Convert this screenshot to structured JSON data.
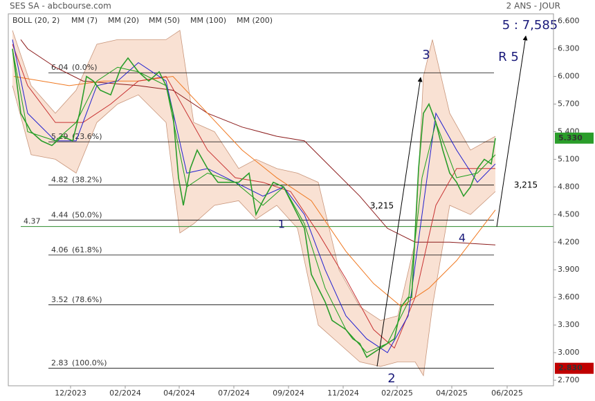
{
  "header": {
    "title": "SES SA - abcbourse.com",
    "period": "2 ANS - JOUR"
  },
  "chart_data": {
    "type": "line",
    "xlim": [
      0,
      394
    ],
    "xticks": [
      {
        "value": 45,
        "label": "12/2023"
      },
      {
        "value": 84.5,
        "label": "02/2024"
      },
      {
        "value": 123.5,
        "label": "04/2024"
      },
      {
        "value": 163,
        "label": "07/2024"
      },
      {
        "value": 202.5,
        "label": "09/2024"
      },
      {
        "value": 242,
        "label": "11/2024"
      },
      {
        "value": 281,
        "label": "02/2025"
      },
      {
        "value": 320.5,
        "label": "04/2025"
      },
      {
        "value": 360.5,
        "label": "06/2025"
      }
    ],
    "ylim": [
      2.64,
      6.68
    ],
    "yticks": [
      {
        "value": 2.7,
        "label": "2.700"
      },
      {
        "value": 3.0,
        "label": "3.000"
      },
      {
        "value": 3.3,
        "label": "3.300"
      },
      {
        "value": 3.6,
        "label": "3.600"
      },
      {
        "value": 3.9,
        "label": "3.900"
      },
      {
        "value": 4.2,
        "label": "4.200"
      },
      {
        "value": 4.5,
        "label": "4.500"
      },
      {
        "value": 4.8,
        "label": "4.800"
      },
      {
        "value": 5.1,
        "label": "5.100"
      },
      {
        "value": 5.4,
        "label": "5.400"
      },
      {
        "value": 5.7,
        "label": "5.700"
      },
      {
        "value": 6.0,
        "label": "6.000"
      },
      {
        "value": 6.3,
        "label": "6.300"
      },
      {
        "value": 6.6,
        "label": "6.600"
      }
    ],
    "price": {
      "color": "#2a9d2a",
      "x": [
        3,
        9,
        16.5,
        24,
        31.5,
        39,
        46.5,
        51.5,
        56.5,
        61.5,
        66.5,
        74,
        81.5,
        86.5,
        94,
        101.5,
        109,
        114,
        119,
        123,
        126.5,
        131.5,
        136.5,
        144,
        151.5,
        159,
        166.5,
        174,
        179,
        184,
        191.5,
        199,
        204,
        209,
        214,
        219,
        224,
        229,
        234,
        239,
        244,
        249,
        254,
        259,
        264,
        269,
        274,
        279,
        284,
        289,
        291.5,
        294,
        296.5,
        300,
        304,
        309,
        314,
        319,
        324,
        329,
        334,
        339,
        344,
        349,
        352
      ],
      "values": [
        6.3,
        5.6,
        5.4,
        5.3,
        5.25,
        5.35,
        5.3,
        5.6,
        6.0,
        5.95,
        5.85,
        5.8,
        6.1,
        6.2,
        6.05,
        5.95,
        6.05,
        5.9,
        5.6,
        4.9,
        4.6,
        5.0,
        5.2,
        5.0,
        4.85,
        4.85,
        4.85,
        4.95,
        4.5,
        4.65,
        4.85,
        4.8,
        4.65,
        4.5,
        4.35,
        3.85,
        3.7,
        3.55,
        3.35,
        3.3,
        3.25,
        3.15,
        3.1,
        2.95,
        3.0,
        3.05,
        3.1,
        3.15,
        3.5,
        3.6,
        3.6,
        4.3,
        5.0,
        5.6,
        5.7,
        5.5,
        5.2,
        4.95,
        4.85,
        4.7,
        4.8,
        5.0,
        5.1,
        5.05,
        5.33
      ]
    },
    "last_price": {
      "value": 5.33,
      "label": "5.330"
    },
    "low_price": {
      "value": 2.83,
      "label": "2.830"
    },
    "bands": {
      "name": "BOLL (20, 2)",
      "color": "#444444",
      "x": [
        3,
        16.5,
        34,
        49,
        64,
        79,
        94,
        114,
        124,
        134,
        149,
        166.5,
        179,
        194,
        209,
        224,
        239,
        254,
        269,
        281.5,
        294,
        300,
        306.5,
        319,
        334,
        352
      ],
      "upper": [
        6.5,
        5.9,
        5.6,
        5.85,
        6.35,
        6.4,
        6.4,
        6.4,
        6.5,
        5.5,
        5.4,
        5.0,
        5.1,
        5.0,
        4.95,
        4.85,
        3.9,
        3.5,
        3.35,
        3.4,
        4.2,
        6.0,
        6.4,
        5.6,
        5.2,
        5.35
      ],
      "lower": [
        5.9,
        5.15,
        5.1,
        4.95,
        5.5,
        5.7,
        5.8,
        5.5,
        4.3,
        4.4,
        4.6,
        4.65,
        4.45,
        4.6,
        4.35,
        3.3,
        3.1,
        2.9,
        2.85,
        2.9,
        2.9,
        2.75,
        3.5,
        4.6,
        4.5,
        4.75
      ]
    },
    "series": [
      {
        "name": "MM (7)",
        "color": "#1a9e1a",
        "x": [
          3,
          14,
          34,
          49,
          64,
          79,
          94,
          114,
          129,
          144,
          164,
          184,
          199,
          214,
          229,
          244,
          259,
          274,
          289,
          299,
          309,
          324,
          339,
          352
        ],
        "values": [
          6.3,
          5.4,
          5.3,
          5.5,
          5.95,
          6.1,
          6.05,
          5.9,
          4.8,
          4.95,
          4.85,
          4.6,
          4.8,
          4.4,
          3.7,
          3.25,
          3.0,
          3.1,
          3.55,
          4.9,
          5.5,
          4.9,
          4.95,
          5.15
        ]
      },
      {
        "name": "MM (20)",
        "color": "#1f1fd0",
        "x": [
          3,
          14,
          34,
          49,
          64,
          79,
          94,
          114,
          129,
          144,
          164,
          184,
          199,
          214,
          229,
          244,
          259,
          274,
          289,
          299,
          309,
          324,
          339,
          352
        ],
        "values": [
          6.4,
          5.6,
          5.3,
          5.3,
          5.9,
          5.95,
          6.15,
          5.95,
          4.95,
          5.0,
          4.85,
          4.7,
          4.8,
          4.5,
          3.9,
          3.4,
          3.15,
          3.0,
          3.4,
          4.5,
          5.6,
          5.2,
          4.85,
          5.05
        ]
      },
      {
        "name": "MM (50)",
        "color": "#c83232",
        "x": [
          3,
          14,
          34,
          54,
          74,
          94,
          114,
          129,
          144,
          164,
          184,
          204,
          224,
          244,
          264,
          279,
          294,
          309,
          324,
          339,
          352
        ],
        "values": [
          6.35,
          5.9,
          5.5,
          5.5,
          5.7,
          5.95,
          6.0,
          5.6,
          5.2,
          4.9,
          4.85,
          4.75,
          4.3,
          3.8,
          3.25,
          3.05,
          3.6,
          4.6,
          5.0,
          5.0,
          5.0
        ]
      },
      {
        "name": "MM (100)",
        "color": "#f07820",
        "x": [
          4,
          44,
          69,
          94,
          119,
          144,
          169,
          194,
          219,
          244,
          264,
          284,
          304,
          324,
          352
        ],
        "values": [
          6.0,
          5.9,
          5.95,
          5.95,
          6.0,
          5.6,
          5.2,
          4.9,
          4.65,
          4.1,
          3.75,
          3.5,
          3.7,
          4.0,
          4.55
        ]
      },
      {
        "name": "MM (200)",
        "color": "#8b1a1a",
        "x": [
          9,
          14,
          34,
          54,
          94,
          119,
          144,
          169,
          194,
          214,
          234,
          254,
          274,
          294,
          319,
          352
        ],
        "values": [
          6.4,
          6.3,
          6.1,
          5.95,
          5.9,
          5.85,
          5.6,
          5.45,
          5.35,
          5.3,
          5.0,
          4.7,
          4.35,
          4.2,
          4.2,
          4.17
        ]
      }
    ],
    "fib_levels": [
      {
        "value": 6.04,
        "pct": "(0.0%)"
      },
      {
        "value": 5.29,
        "pct": "(23.6%)"
      },
      {
        "value": 4.82,
        "pct": "(38.2%)"
      },
      {
        "value": 4.44,
        "pct": "(50.0%)"
      },
      {
        "value": 4.06,
        "pct": "(61.8%)"
      },
      {
        "value": 3.52,
        "pct": "(78.6%)"
      },
      {
        "value": 2.83,
        "pct": "(100.0%)"
      }
    ],
    "support": {
      "value": 4.37,
      "color": "#2a8a2a"
    },
    "annotations": [
      "1",
      "2",
      "3",
      "4",
      "R 5",
      "5 : 7,585",
      "3,215",
      "3,215"
    ]
  }
}
